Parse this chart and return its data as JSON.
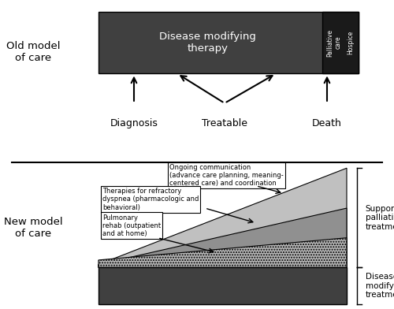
{
  "fig_width": 5.0,
  "fig_height": 3.92,
  "bg_color": "#ffffff",
  "old_model_label": "Old model\nof care",
  "new_model_label": "New model\nof care",
  "disease_mod_text": "Disease modifying\ntherapy",
  "diagnosis_label": "Diagnosis",
  "treatable_label": "Treatable",
  "death_label": "Death",
  "dark_box_color": "#404040",
  "palliative_box_color": "#1a1a1a",
  "box1_text": "Ongoing communication\n(advance care planning, meaning-\ncentered care) and coordination",
  "box2_text": "Therapies for refractory\ndyspnea (pharmacologic and\nbehavioral)",
  "box3_text": "Pulmonary\nrehab (outpatient\nand at home)",
  "supportive_text": "Supportive\npalliative\ntreatment",
  "disease_mod_treatment_text": "Disease\nmodifying\ntreatment",
  "color_light_gray": "#c0c0c0",
  "color_medium_gray": "#909090",
  "color_dark_gray": "#686868",
  "color_hatch": "#b8b8b8"
}
